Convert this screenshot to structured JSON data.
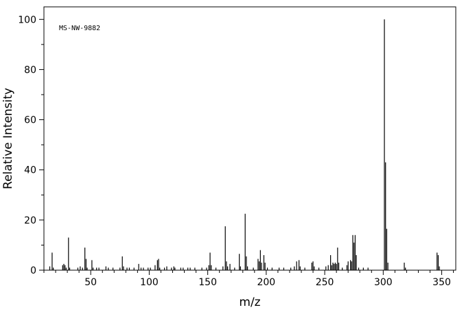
{
  "chart_data": {
    "type": "bar",
    "title": "",
    "annotation": "MS-NW-9882",
    "xlabel": "m/z",
    "ylabel": "Relative Intensity",
    "xlim": [
      10,
      362
    ],
    "ylim": [
      0,
      105
    ],
    "x_ticks": [
      50,
      100,
      150,
      200,
      250,
      300,
      350
    ],
    "y_ticks": [
      0,
      20,
      40,
      60,
      80,
      100
    ],
    "x_minor_step": 10,
    "y_minor_step": 10,
    "grid": false,
    "legend": "none",
    "color": "#000000",
    "peaks": [
      {
        "x": 15,
        "y": 1.5
      },
      {
        "x": 17,
        "y": 7.0
      },
      {
        "x": 18,
        "y": 1.0
      },
      {
        "x": 26,
        "y": 2.0
      },
      {
        "x": 27,
        "y": 2.5
      },
      {
        "x": 28,
        "y": 2.0
      },
      {
        "x": 29,
        "y": 1.0
      },
      {
        "x": 31,
        "y": 13.0
      },
      {
        "x": 32,
        "y": 1.0
      },
      {
        "x": 39,
        "y": 1.0
      },
      {
        "x": 41,
        "y": 1.5
      },
      {
        "x": 43,
        "y": 1.0
      },
      {
        "x": 45,
        "y": 9.0
      },
      {
        "x": 46,
        "y": 4.5
      },
      {
        "x": 47,
        "y": 1.0
      },
      {
        "x": 51,
        "y": 4.0
      },
      {
        "x": 52,
        "y": 1.0
      },
      {
        "x": 55,
        "y": 1.0
      },
      {
        "x": 57,
        "y": 1.0
      },
      {
        "x": 63,
        "y": 1.5
      },
      {
        "x": 65,
        "y": 1.0
      },
      {
        "x": 69,
        "y": 1.0
      },
      {
        "x": 75,
        "y": 1.0
      },
      {
        "x": 77,
        "y": 5.5
      },
      {
        "x": 78,
        "y": 1.5
      },
      {
        "x": 81,
        "y": 1.0
      },
      {
        "x": 83,
        "y": 1.0
      },
      {
        "x": 87,
        "y": 1.0
      },
      {
        "x": 91,
        "y": 2.5
      },
      {
        "x": 93,
        "y": 1.0
      },
      {
        "x": 95,
        "y": 1.0
      },
      {
        "x": 99,
        "y": 1.0
      },
      {
        "x": 101,
        "y": 1.0
      },
      {
        "x": 105,
        "y": 2.0
      },
      {
        "x": 107,
        "y": 4.0
      },
      {
        "x": 108,
        "y": 4.5
      },
      {
        "x": 109,
        "y": 1.0
      },
      {
        "x": 113,
        "y": 1.0
      },
      {
        "x": 115,
        "y": 1.5
      },
      {
        "x": 119,
        "y": 1.0
      },
      {
        "x": 121,
        "y": 1.5
      },
      {
        "x": 122,
        "y": 1.0
      },
      {
        "x": 127,
        "y": 1.0
      },
      {
        "x": 129,
        "y": 1.0
      },
      {
        "x": 133,
        "y": 1.0
      },
      {
        "x": 135,
        "y": 1.0
      },
      {
        "x": 139,
        "y": 1.0
      },
      {
        "x": 145,
        "y": 1.0
      },
      {
        "x": 149,
        "y": 1.0
      },
      {
        "x": 151,
        "y": 2.0
      },
      {
        "x": 152,
        "y": 7.0
      },
      {
        "x": 153,
        "y": 2.0
      },
      {
        "x": 157,
        "y": 1.0
      },
      {
        "x": 163,
        "y": 1.5
      },
      {
        "x": 165,
        "y": 17.5
      },
      {
        "x": 166,
        "y": 3.5
      },
      {
        "x": 167,
        "y": 1.5
      },
      {
        "x": 169,
        "y": 2.5
      },
      {
        "x": 173,
        "y": 1.0
      },
      {
        "x": 177,
        "y": 6.5
      },
      {
        "x": 178,
        "y": 1.5
      },
      {
        "x": 182,
        "y": 22.5
      },
      {
        "x": 183,
        "y": 5.5
      },
      {
        "x": 184,
        "y": 1.5
      },
      {
        "x": 189,
        "y": 1.0
      },
      {
        "x": 193,
        "y": 4.5
      },
      {
        "x": 194,
        "y": 3.5
      },
      {
        "x": 195,
        "y": 8.0
      },
      {
        "x": 196,
        "y": 3.0
      },
      {
        "x": 198,
        "y": 6.0
      },
      {
        "x": 199,
        "y": 3.0
      },
      {
        "x": 201,
        "y": 1.0
      },
      {
        "x": 205,
        "y": 1.0
      },
      {
        "x": 211,
        "y": 1.0
      },
      {
        "x": 215,
        "y": 1.0
      },
      {
        "x": 221,
        "y": 1.0
      },
      {
        "x": 224,
        "y": 1.5
      },
      {
        "x": 226,
        "y": 3.5
      },
      {
        "x": 228,
        "y": 4.0
      },
      {
        "x": 229,
        "y": 1.5
      },
      {
        "x": 233,
        "y": 1.0
      },
      {
        "x": 239,
        "y": 3.0
      },
      {
        "x": 240,
        "y": 3.5
      },
      {
        "x": 241,
        "y": 1.5
      },
      {
        "x": 245,
        "y": 1.0
      },
      {
        "x": 251,
        "y": 1.5
      },
      {
        "x": 253,
        "y": 2.0
      },
      {
        "x": 255,
        "y": 6.0
      },
      {
        "x": 256,
        "y": 2.0
      },
      {
        "x": 257,
        "y": 3.0
      },
      {
        "x": 258,
        "y": 2.5
      },
      {
        "x": 259,
        "y": 3.0
      },
      {
        "x": 260,
        "y": 2.5
      },
      {
        "x": 261,
        "y": 9.0
      },
      {
        "x": 262,
        "y": 3.0
      },
      {
        "x": 265,
        "y": 1.0
      },
      {
        "x": 269,
        "y": 2.0
      },
      {
        "x": 270,
        "y": 3.5
      },
      {
        "x": 272,
        "y": 4.0
      },
      {
        "x": 273,
        "y": 3.5
      },
      {
        "x": 274,
        "y": 14.0
      },
      {
        "x": 275,
        "y": 11.0
      },
      {
        "x": 276,
        "y": 14.0
      },
      {
        "x": 277,
        "y": 6.0
      },
      {
        "x": 279,
        "y": 1.0
      },
      {
        "x": 283,
        "y": 1.0
      },
      {
        "x": 287,
        "y": 1.0
      },
      {
        "x": 301,
        "y": 100.0
      },
      {
        "x": 302,
        "y": 43.0
      },
      {
        "x": 303,
        "y": 16.5
      },
      {
        "x": 304,
        "y": 3.0
      },
      {
        "x": 318,
        "y": 3.0
      },
      {
        "x": 319,
        "y": 1.0
      },
      {
        "x": 346,
        "y": 7.0
      },
      {
        "x": 347,
        "y": 6.0
      },
      {
        "x": 348,
        "y": 1.5
      }
    ]
  }
}
